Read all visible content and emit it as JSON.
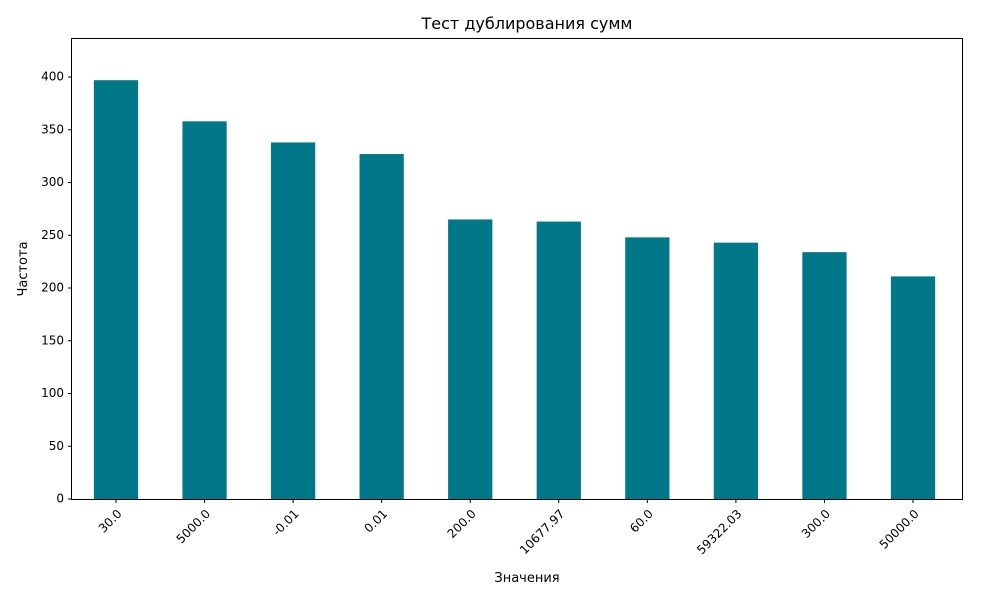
{
  "chart_data": {
    "type": "bar",
    "title": "Тест дублирования сумм",
    "xlabel": "Значения",
    "ylabel": "Частота",
    "categories": [
      "30.0",
      "5000.0",
      "-0.01",
      "0.01",
      "200.0",
      "10677.97",
      "60.0",
      "59322.03",
      "300.0",
      "50000.0"
    ],
    "values": [
      397,
      358,
      338,
      327,
      265,
      263,
      248,
      243,
      234,
      211
    ],
    "ylim": [
      0,
      437
    ],
    "yticks": [
      0,
      50,
      100,
      150,
      200,
      250,
      300,
      350,
      400
    ],
    "bar_color": "#00788A",
    "grid": false,
    "x_tick_rotation": 45
  }
}
